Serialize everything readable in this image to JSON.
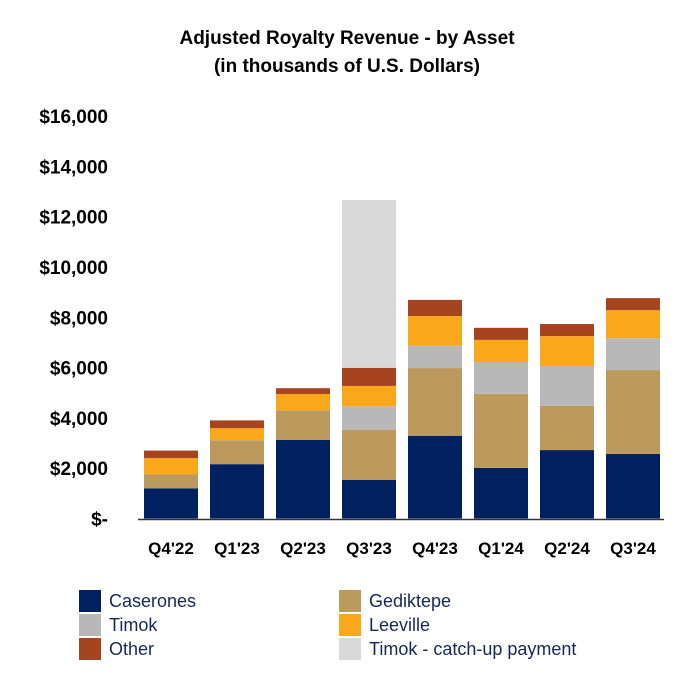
{
  "chart_data": {
    "type": "bar",
    "stacked": true,
    "title": "Adjusted Royalty Revenue - by Asset",
    "subtitle": "(in thousands of U.S. Dollars)",
    "categories": [
      "Q4'22",
      "Q1'23",
      "Q2'23",
      "Q3'23",
      "Q4'23",
      "Q1'24",
      "Q2'24",
      "Q3'24"
    ],
    "ylim": [
      0,
      16000
    ],
    "yticks": [
      0,
      2000,
      4000,
      6000,
      8000,
      10000,
      12000,
      14000,
      16000
    ],
    "ytick_labels": [
      "$-",
      "$2,000",
      "$4,000",
      "$6,000",
      "$8,000",
      "$10,000",
      "$12,000",
      "$14,000",
      "$16,000"
    ],
    "grid": false,
    "legend_position": "bottom",
    "series": [
      {
        "name": "Caserones",
        "color": "#002060",
        "values": [
          1200,
          2160,
          3120,
          1530,
          3290,
          2010,
          2720,
          2570
        ]
      },
      {
        "name": "Gediktepe",
        "color": "#BC9A5E",
        "values": [
          550,
          950,
          1180,
          1990,
          2690,
          2950,
          1760,
          3330
        ]
      },
      {
        "name": "Timok",
        "color": "#B8B8B8",
        "values": [
          0,
          0,
          0,
          940,
          890,
          1260,
          1580,
          1270
        ]
      },
      {
        "name": "Leeville",
        "color": "#F9A81B",
        "values": [
          650,
          480,
          650,
          810,
          1180,
          880,
          1190,
          1110
        ]
      },
      {
        "name": "Other",
        "color": "#A5441F",
        "values": [
          300,
          310,
          230,
          720,
          640,
          480,
          480,
          480
        ]
      },
      {
        "name": "Timok - catch-up payment",
        "color": "#D9D9D9",
        "values": [
          0,
          0,
          0,
          6670,
          0,
          0,
          0,
          0
        ]
      }
    ]
  },
  "legend_order": [
    0,
    1,
    2,
    3,
    4,
    5
  ]
}
